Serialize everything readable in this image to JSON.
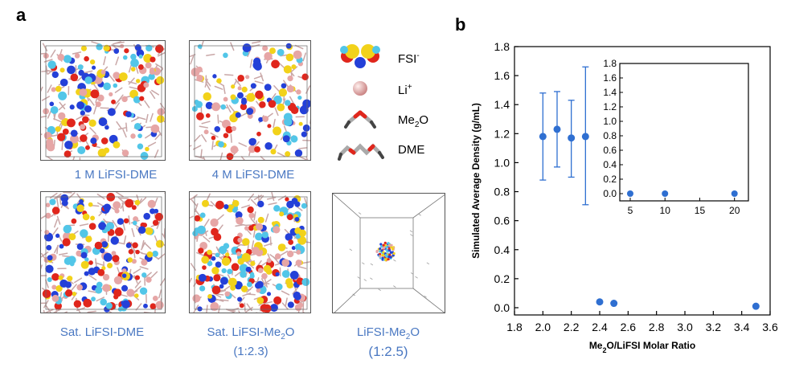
{
  "panel_a": {
    "letter": "a",
    "captions": {
      "c1": "1 M LiFSI-DME",
      "c2": "4 M LiFSI-DME",
      "c3": "Sat. LiFSI-DME",
      "c4_line1": "Sat. LiFSI-Me",
      "c4_sub": "2",
      "c4_tail": "O",
      "c4_line2": "(1:2.3)",
      "c5_line1": "LiFSI-Me",
      "c5_sub": "2",
      "c5_tail": "O",
      "c5_line2": "(1:2.5)"
    },
    "legend": {
      "fsi": "FSI",
      "fsi_sup": "-",
      "li": "Li",
      "li_sup": "+",
      "me2o": "Me",
      "me2o_sub": "2",
      "me2o_tail": "O",
      "dme": "DME"
    },
    "colors": {
      "sulfur": "#f2d21a",
      "oxygen": "#e0261c",
      "nitrogen": "#2440d8",
      "fluorine": "#52c6e8",
      "lithium": "#e6a6a6",
      "bond": "#c9a7a7"
    }
  },
  "panel_b": {
    "letter": "b"
  },
  "chart_data": [
    {
      "type": "scatter",
      "title": "",
      "xlabel_main": "Me",
      "xlabel_sub": "2",
      "xlabel_tail": "O/LiFSI Molar Ratio",
      "ylabel": "Simulated Average Density (g/mL)",
      "xlim": [
        1.8,
        3.6
      ],
      "ylim": [
        -0.05,
        1.8
      ],
      "xticks": [
        "1.8",
        "2.0",
        "2.2",
        "2.4",
        "2.6",
        "2.8",
        "3.0",
        "3.2",
        "3.4",
        "3.6"
      ],
      "yticks": [
        "0.0",
        "0.2",
        "0.4",
        "0.6",
        "0.8",
        "1.0",
        "1.2",
        "1.4",
        "1.6",
        "1.8"
      ],
      "color": "#2f6fd1",
      "points": [
        {
          "x": 2.0,
          "y": 1.18,
          "err_low": 0.88,
          "err_high": 1.48
        },
        {
          "x": 2.1,
          "y": 1.23,
          "err_low": 0.97,
          "err_high": 1.49
        },
        {
          "x": 2.2,
          "y": 1.17,
          "err_low": 0.9,
          "err_high": 1.43
        },
        {
          "x": 2.3,
          "y": 1.18,
          "err_low": 0.71,
          "err_high": 1.66
        },
        {
          "x": 2.4,
          "y": 0.04
        },
        {
          "x": 2.5,
          "y": 0.03
        },
        {
          "x": 3.5,
          "y": 0.01
        }
      ]
    },
    {
      "type": "scatter",
      "title": "inset",
      "xlim": [
        3.5,
        22
      ],
      "ylim": [
        -0.1,
        1.8
      ],
      "xticks": [
        "5",
        "10",
        "15",
        "20"
      ],
      "yticks": [
        "0.0",
        "0.2",
        "0.4",
        "0.6",
        "0.8",
        "1.0",
        "1.2",
        "1.4",
        "1.6",
        "1.8"
      ],
      "color": "#2f6fd1",
      "points": [
        {
          "x": 5,
          "y": 0.0
        },
        {
          "x": 10,
          "y": 0.0
        },
        {
          "x": 20,
          "y": 0.0
        }
      ]
    }
  ]
}
